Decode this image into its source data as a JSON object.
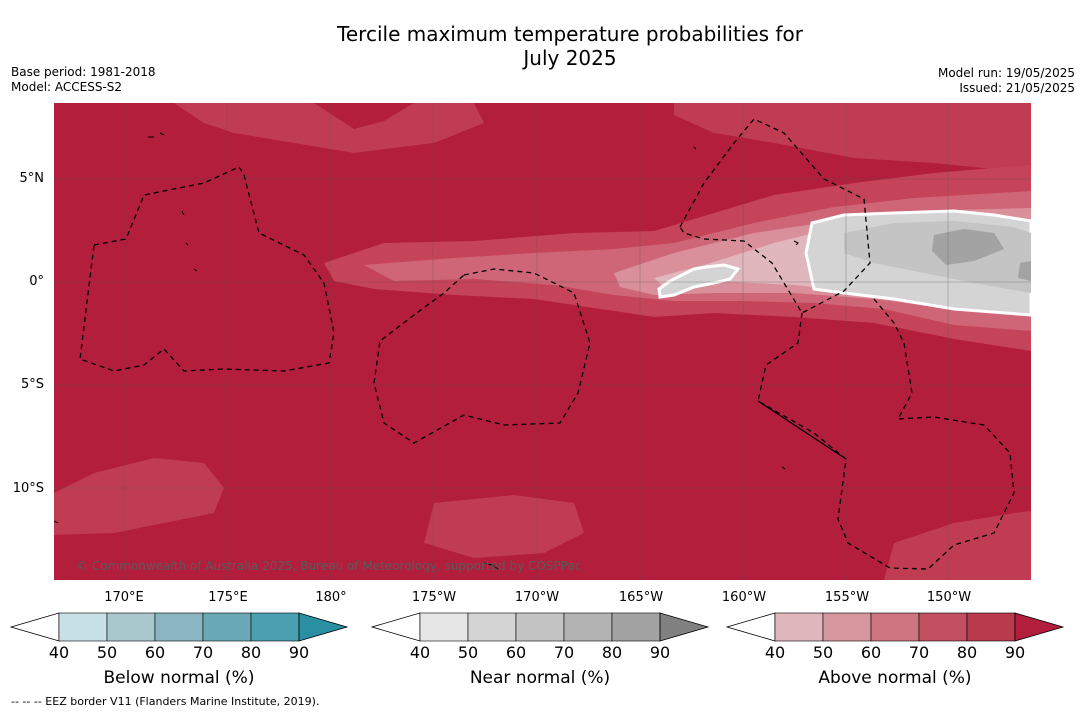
{
  "title_line1": "Tercile maximum temperature probabilities for",
  "title_line2": "July 2025",
  "base_period": "Base period: 1981-2018",
  "model": "Model: ACCESS-S2",
  "model_run": "Model run: 19/05/2025",
  "issued": "Issued: 21/05/2025",
  "copyright": "© Commonwealth of Australia 2025, Bureau of Meteorology, supported by COSPPac",
  "lat_labels": [
    "5°N",
    "0°",
    "5°S",
    "10°S"
  ],
  "lon_labels": [
    "170°E",
    "175°E",
    "180°",
    "175°W",
    "170°W",
    "165°W",
    "160°W",
    "155°W",
    "150°W"
  ],
  "colorbars": [
    {
      "label": "Below normal (%)",
      "ticks": [
        "40",
        "50",
        "60",
        "70",
        "80",
        "90"
      ],
      "colors": [
        "#ffffff",
        "#c7e1e6",
        "#a8c8ce",
        "#8ab6c2",
        "#6aaab8",
        "#4aa0b0",
        "#2a8fa3"
      ]
    },
    {
      "label": "Near normal (%)",
      "ticks": [
        "40",
        "50",
        "60",
        "70",
        "80",
        "90"
      ],
      "colors": [
        "#ffffff",
        "#e6e6e6",
        "#d4d4d4",
        "#c4c4c4",
        "#b3b3b3",
        "#a3a3a3",
        "#808080"
      ]
    },
    {
      "label": "Above normal (%)",
      "ticks": [
        "40",
        "50",
        "60",
        "70",
        "80",
        "90"
      ],
      "colors": [
        "#ffffff",
        "#e0b7bd",
        "#d6969e",
        "#cc747f",
        "#c25060",
        "#b83a4d",
        "#b21e3b"
      ]
    }
  ],
  "eez_note": "--  --  -- EEZ border V11 (Flanders Marine Institute, 2019)."
}
